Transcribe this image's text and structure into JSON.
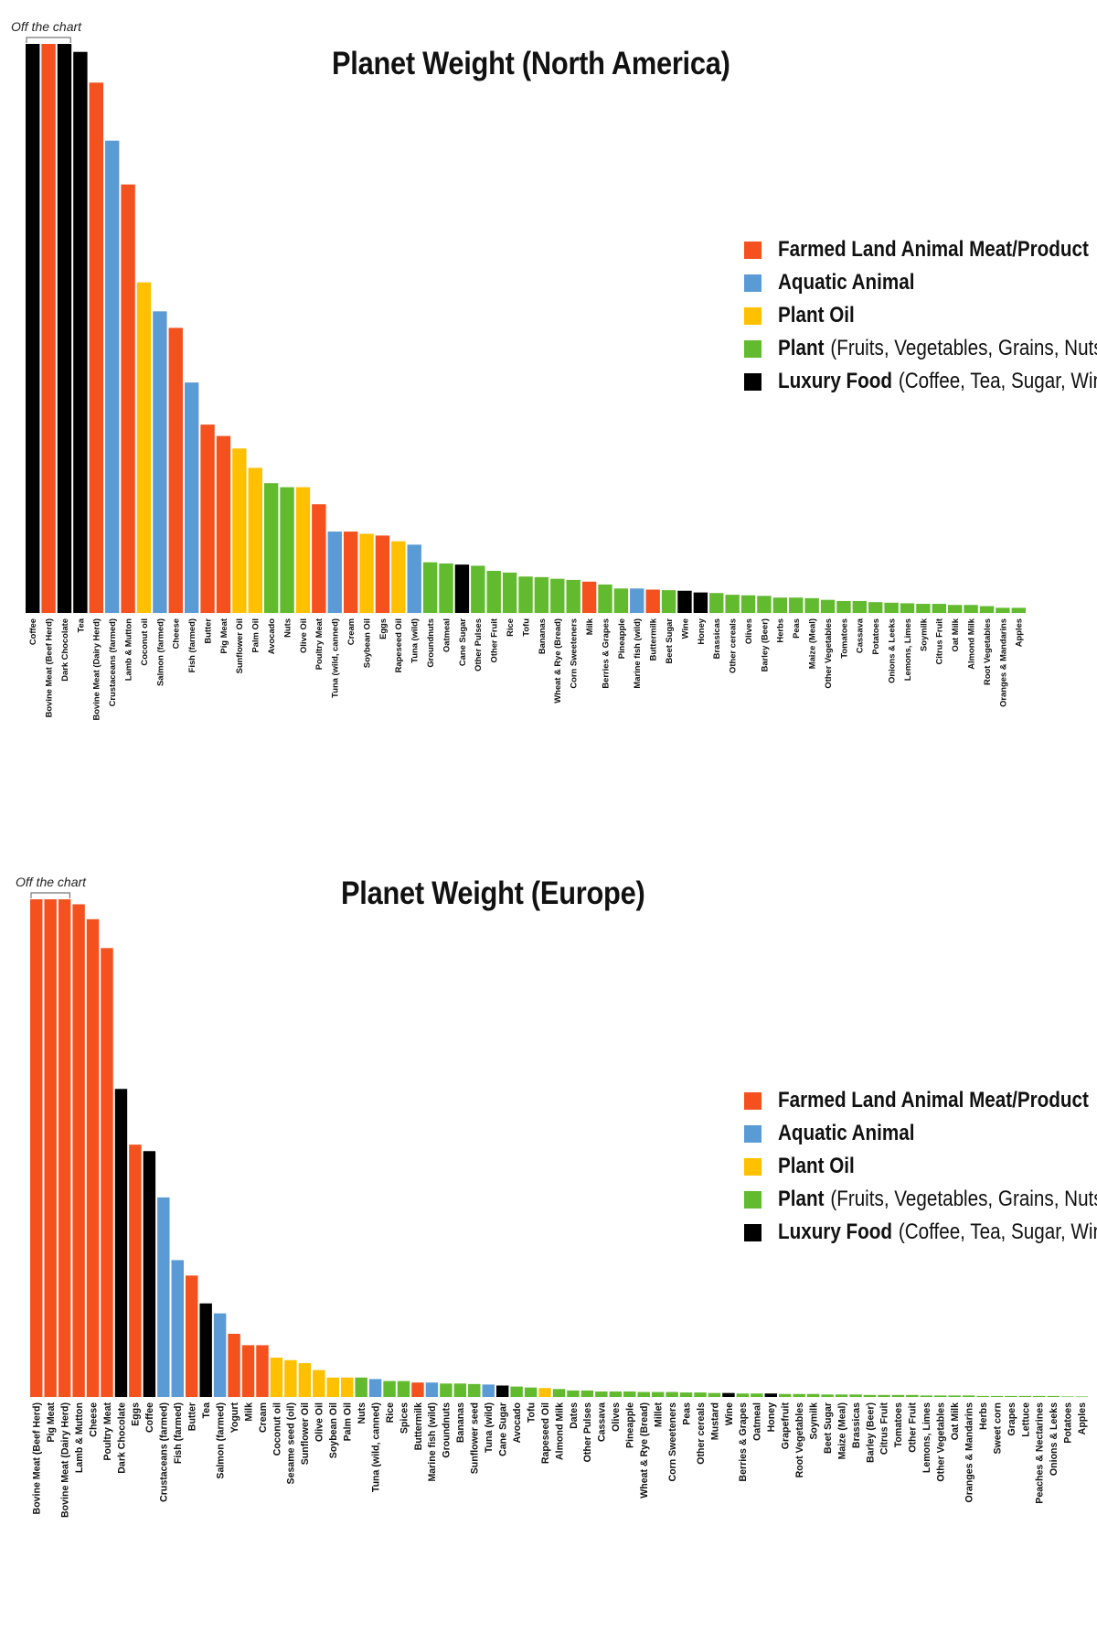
{
  "colors": {
    "Farmed Land Animal Meat/Product": "#f4511e",
    "Aquatic Animal": "#5b9bd5",
    "Plant Oil": "#ffc000",
    "Plant": "#62bb2f",
    "Luxury Food": "#000000"
  },
  "legend": [
    {
      "key": "Farmed Land Animal Meat/Product",
      "name": "Farmed Land Animal Meat/Product",
      "note": ""
    },
    {
      "key": "Aquatic Animal",
      "name": "Aquatic Animal",
      "note": ""
    },
    {
      "key": "Plant Oil",
      "name": "Plant Oil",
      "note": ""
    },
    {
      "key": "Plant",
      "name": "Plant",
      "note": "(Fruits, Vegetables, Grains, Nuts)"
    },
    {
      "key": "Luxury Food",
      "name": "Luxury Food",
      "note": "(Coffee, Tea, Sugar, Wine)"
    }
  ],
  "chart_data": [
    {
      "type": "bar",
      "title": "Planet Weight (North America)",
      "annotation": "Off the chart",
      "off_chart_categories": [
        "Coffee",
        "Bovine Meat (Beef Herd)",
        "Dark Chocolate"
      ],
      "grid": false,
      "legend_position": "right",
      "ylim": [
        0,
        100
      ],
      "categories": [
        "Coffee",
        "Bovine Meat (Beef Herd)",
        "Dark Chocolate",
        "Tea",
        "Bovine Meat (Dairy Herd)",
        "Crustaceans (farmed)",
        "Lamb & Mutton",
        "Coconut oil",
        "Salmon (farmed)",
        "Cheese",
        "Fish (farmed)",
        "Butter",
        "Pig Meat",
        "Sunflower Oil",
        "Palm Oil",
        "Avocado",
        "Nuts",
        "Olive Oil",
        "Poultry Meat",
        "Tuna (wild, canned)",
        "Cream",
        "Soybean Oil",
        "Eggs",
        "Rapeseed Oil",
        "Tuna (wild)",
        "Groundnuts",
        "Oatmeal",
        "Cane Sugar",
        "Other Pulses",
        "Other Fruit",
        "Rice",
        "Tofu",
        "Bananas",
        "Wheat & Rye (Bread)",
        "Corn Sweeteners",
        "Milk",
        "Berries & Grapes",
        "Pineapple",
        "Marine fish (wild)",
        "Buttermilk",
        "Beet Sugar",
        "Wine",
        "Honey",
        "Brassicas",
        "Other cereals",
        "Olives",
        "Barley (Beer)",
        "Herbs",
        "Peas",
        "Maize (Meal)",
        "Other Vegetables",
        "Tomatoes",
        "Cassava",
        "Potatoes",
        "Onions & Leeks",
        "Lemons, Limes",
        "Soymilk",
        "Citrus Fruit",
        "Oat Milk",
        "Almond Milk",
        "Root Vegetables",
        "Oranges & Mandarins",
        "Apples"
      ],
      "values": [
        100,
        100,
        100,
        98.6,
        93.2,
        83.0,
        75.3,
        58.1,
        53.0,
        50.1,
        40.5,
        33.1,
        31.1,
        28.9,
        25.5,
        22.8,
        22.1,
        22.1,
        19.1,
        14.3,
        14.3,
        13.9,
        13.6,
        12.6,
        12.0,
        8.9,
        8.7,
        8.5,
        8.3,
        7.4,
        7.1,
        6.4,
        6.3,
        6.0,
        5.8,
        5.5,
        5.0,
        4.3,
        4.3,
        4.1,
        4.0,
        3.9,
        3.6,
        3.5,
        3.2,
        3.1,
        3.0,
        2.7,
        2.7,
        2.6,
        2.3,
        2.1,
        2.1,
        1.9,
        1.8,
        1.7,
        1.6,
        1.6,
        1.4,
        1.4,
        1.2,
        0.9,
        0.9
      ],
      "groups": [
        "Luxury Food",
        "Farmed Land Animal Meat/Product",
        "Luxury Food",
        "Luxury Food",
        "Farmed Land Animal Meat/Product",
        "Aquatic Animal",
        "Farmed Land Animal Meat/Product",
        "Plant Oil",
        "Aquatic Animal",
        "Farmed Land Animal Meat/Product",
        "Aquatic Animal",
        "Farmed Land Animal Meat/Product",
        "Farmed Land Animal Meat/Product",
        "Plant Oil",
        "Plant Oil",
        "Plant",
        "Plant",
        "Plant Oil",
        "Farmed Land Animal Meat/Product",
        "Aquatic Animal",
        "Farmed Land Animal Meat/Product",
        "Plant Oil",
        "Farmed Land Animal Meat/Product",
        "Plant Oil",
        "Aquatic Animal",
        "Plant",
        "Plant",
        "Luxury Food",
        "Plant",
        "Plant",
        "Plant",
        "Plant",
        "Plant",
        "Plant",
        "Plant",
        "Farmed Land Animal Meat/Product",
        "Plant",
        "Plant",
        "Aquatic Animal",
        "Farmed Land Animal Meat/Product",
        "Plant",
        "Luxury Food",
        "Luxury Food",
        "Plant",
        "Plant",
        "Plant",
        "Plant",
        "Plant",
        "Plant",
        "Plant",
        "Plant",
        "Plant",
        "Plant",
        "Plant",
        "Plant",
        "Plant",
        "Plant",
        "Plant",
        "Plant",
        "Plant",
        "Plant",
        "Plant",
        "Plant"
      ]
    },
    {
      "type": "bar",
      "title": "Planet Weight (Europe)",
      "annotation": "Off the chart",
      "off_chart_categories": [
        "Bovine Meat (Beef Herd)",
        "Pig Meat",
        "Bovine Meat (Dairy Herd)"
      ],
      "grid": false,
      "legend_position": "right",
      "ylim": [
        0,
        100
      ],
      "categories": [
        "Bovine Meat (Beef Herd)",
        "Pig Meat",
        "Bovine Meat (Dairy Herd)",
        "Lamb & Mutton",
        "Cheese",
        "Poultry Meat",
        "Dark Chocolate",
        "Eggs",
        "Coffee",
        "Crustaceans (farmed)",
        "Fish (farmed)",
        "Butter",
        "Tea",
        "Salmon (farmed)",
        "Yogurt",
        "Milk",
        "Cream",
        "Coconut oil",
        "Sesame seed (oil)",
        "Sunflower Oil",
        "Olive Oil",
        "Soybean Oil",
        "Palm Oil",
        "Nuts",
        "Tuna (wild, canned)",
        "Rice",
        "Spices",
        "Buttermilk",
        "Marine fish (wild)",
        "Groundnuts",
        "Bananas",
        "Sunflower seed",
        "Tuna (wild)",
        "Cane Sugar",
        "Avocado",
        "Tofu",
        "Rapeseed Oil",
        "Almond Milk",
        "Dates",
        "Other Pulses",
        "Cassava",
        "Olives",
        "Pineapple",
        "Wheat & Rye (Bread)",
        "Millet",
        "Corn Sweeteners",
        "Peas",
        "Other cereals",
        "Mustard",
        "Wine",
        "Berries & Grapes",
        "Oatmeal",
        "Honey",
        "Grapefruit",
        "Root Vegetables",
        "Soymilk",
        "Beet Sugar",
        "Maize (Meal)",
        "Brassicas",
        "Barley (Beer)",
        "Citrus Fruit",
        "Tomatoes",
        "Other Fruit",
        "Lemons, Limes",
        "Other Vegetables",
        "Oat Milk",
        "Oranges & Mandarins",
        "Herbs",
        "Sweet corn",
        "Grapes",
        "Lettuce",
        "Peaches & Nectarines",
        "Onions & Leeks",
        "Potatoes",
        "Apples"
      ],
      "values": [
        100,
        100,
        100,
        99.0,
        96.0,
        90.2,
        61.9,
        50.7,
        49.4,
        40.1,
        27.5,
        24.4,
        18.8,
        16.8,
        12.7,
        10.4,
        10.4,
        7.9,
        7.4,
        6.8,
        5.4,
        3.9,
        3.9,
        3.9,
        3.6,
        3.2,
        3.2,
        2.9,
        2.9,
        2.7,
        2.7,
        2.6,
        2.5,
        2.3,
        2.1,
        1.9,
        1.8,
        1.6,
        1.3,
        1.3,
        1.1,
        1.1,
        1.1,
        1.0,
        1.0,
        1.0,
        0.9,
        0.9,
        0.8,
        0.8,
        0.7,
        0.7,
        0.7,
        0.6,
        0.6,
        0.6,
        0.5,
        0.5,
        0.5,
        0.4,
        0.4,
        0.4,
        0.4,
        0.3,
        0.3,
        0.3,
        0.3,
        0.2,
        0.2,
        0.2,
        0.2,
        0.2,
        0.2,
        0.1,
        0.1
      ],
      "groups": [
        "Farmed Land Animal Meat/Product",
        "Farmed Land Animal Meat/Product",
        "Farmed Land Animal Meat/Product",
        "Farmed Land Animal Meat/Product",
        "Farmed Land Animal Meat/Product",
        "Farmed Land Animal Meat/Product",
        "Luxury Food",
        "Farmed Land Animal Meat/Product",
        "Luxury Food",
        "Aquatic Animal",
        "Aquatic Animal",
        "Farmed Land Animal Meat/Product",
        "Luxury Food",
        "Aquatic Animal",
        "Farmed Land Animal Meat/Product",
        "Farmed Land Animal Meat/Product",
        "Farmed Land Animal Meat/Product",
        "Plant Oil",
        "Plant Oil",
        "Plant Oil",
        "Plant Oil",
        "Plant Oil",
        "Plant Oil",
        "Plant",
        "Aquatic Animal",
        "Plant",
        "Plant",
        "Farmed Land Animal Meat/Product",
        "Aquatic Animal",
        "Plant",
        "Plant",
        "Plant",
        "Aquatic Animal",
        "Luxury Food",
        "Plant",
        "Plant",
        "Plant Oil",
        "Plant",
        "Plant",
        "Plant",
        "Plant",
        "Plant",
        "Plant",
        "Plant",
        "Plant",
        "Plant",
        "Plant",
        "Plant",
        "Plant",
        "Luxury Food",
        "Plant",
        "Plant",
        "Luxury Food",
        "Plant",
        "Plant",
        "Plant",
        "Plant",
        "Plant",
        "Plant",
        "Plant",
        "Plant",
        "Plant",
        "Plant",
        "Plant",
        "Plant",
        "Plant",
        "Plant",
        "Plant",
        "Plant",
        "Plant",
        "Plant",
        "Plant",
        "Plant",
        "Plant",
        "Plant"
      ]
    }
  ]
}
